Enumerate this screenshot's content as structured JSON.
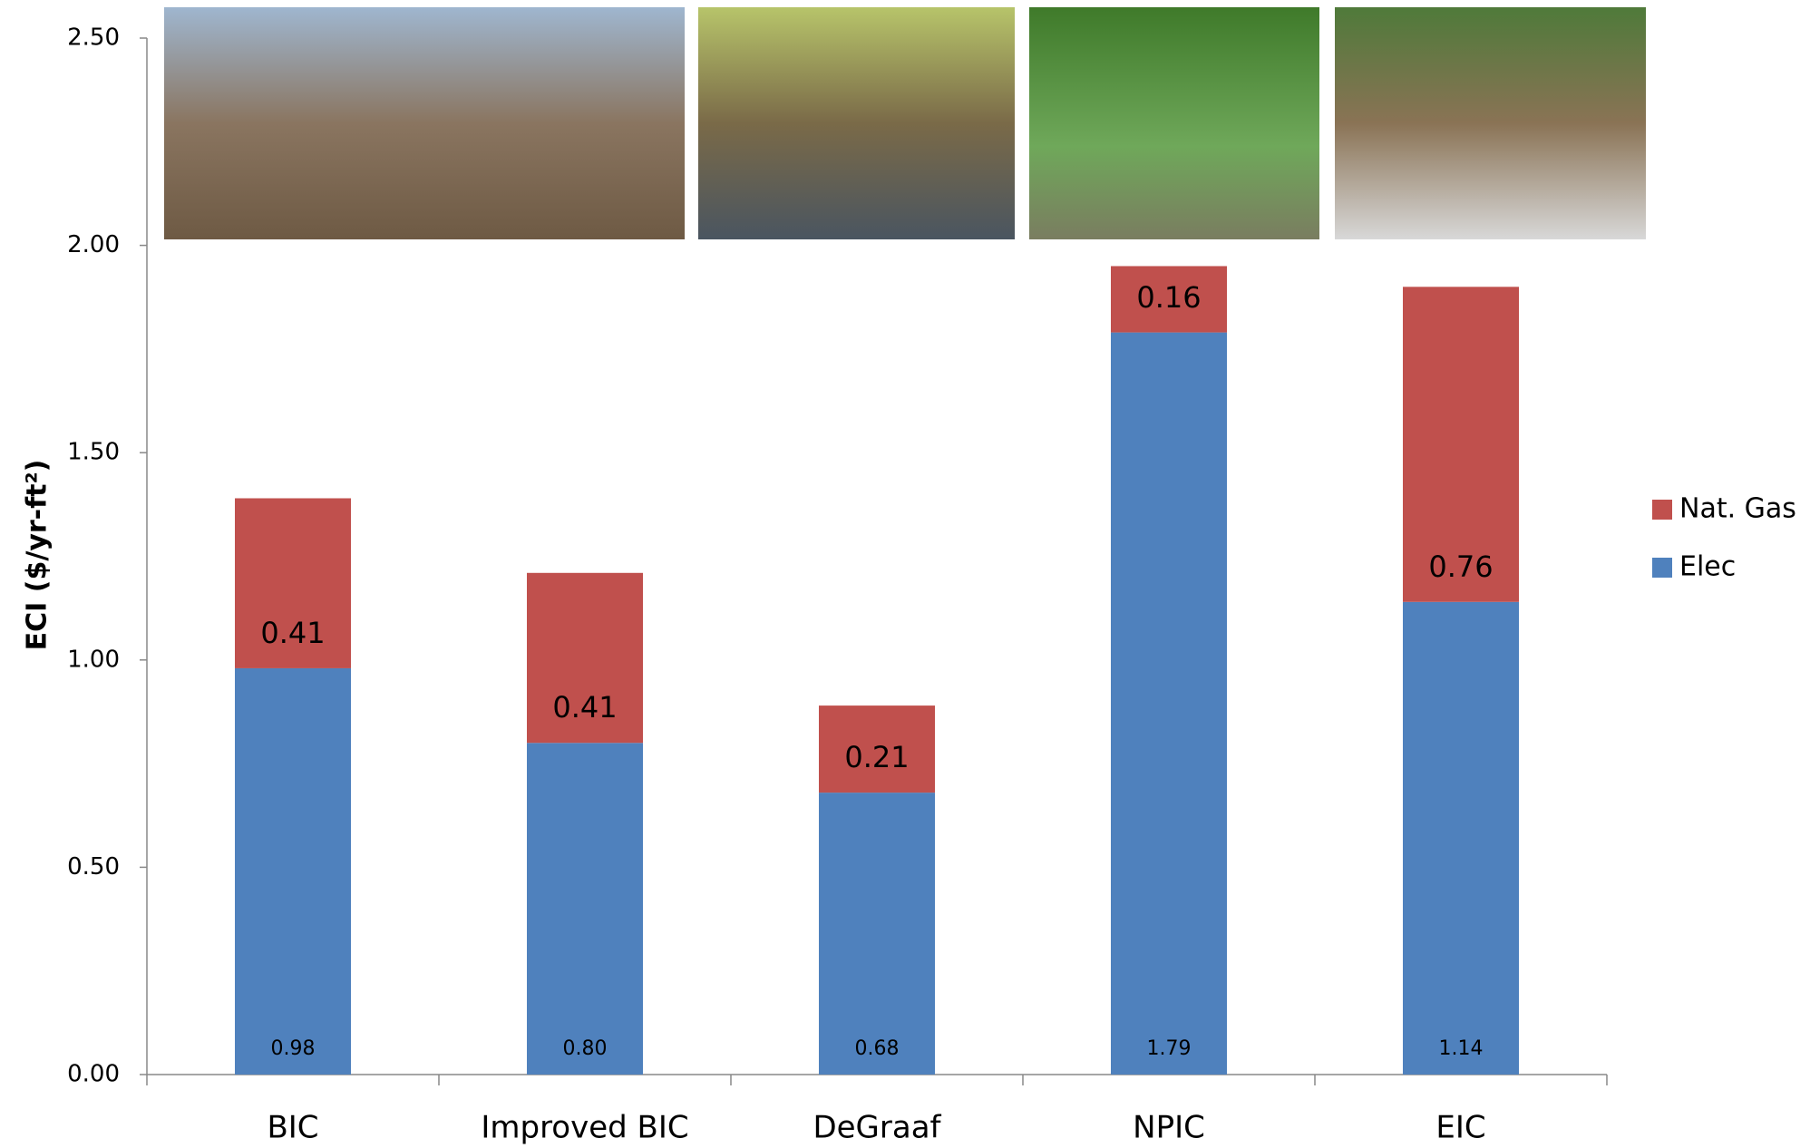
{
  "chart_data": {
    "type": "stacked_bar",
    "y_label": "ECI ($/yr-ft²)",
    "categories": [
      "BIC",
      "Improved BIC",
      "DeGraaf",
      "NPIC",
      "EIC"
    ],
    "series": [
      {
        "name": "Elec",
        "color": "#4f81bd",
        "values": [
          0.98,
          0.8,
          0.68,
          1.79,
          1.14
        ],
        "value_labels": [
          "0.98",
          "0.80",
          "0.68",
          "1.79",
          "1.14"
        ]
      },
      {
        "name": "Nat. Gas",
        "color": "#c0504d",
        "values": [
          0.41,
          0.41,
          0.21,
          0.16,
          0.76
        ],
        "value_labels": [
          "0.41",
          "0.41",
          "0.21",
          "0.16",
          "0.76"
        ]
      }
    ],
    "ylim": [
      0,
      2.5
    ],
    "yticks": [
      {
        "value": 0,
        "label": "0.00"
      },
      {
        "value": 0.5,
        "label": "0.50"
      },
      {
        "value": 1,
        "label": "1.00"
      },
      {
        "value": 1.5,
        "label": "1.50"
      },
      {
        "value": 2,
        "label": "2.00"
      },
      {
        "value": 2.5,
        "label": "2.50"
      }
    ],
    "legend": "right"
  }
}
